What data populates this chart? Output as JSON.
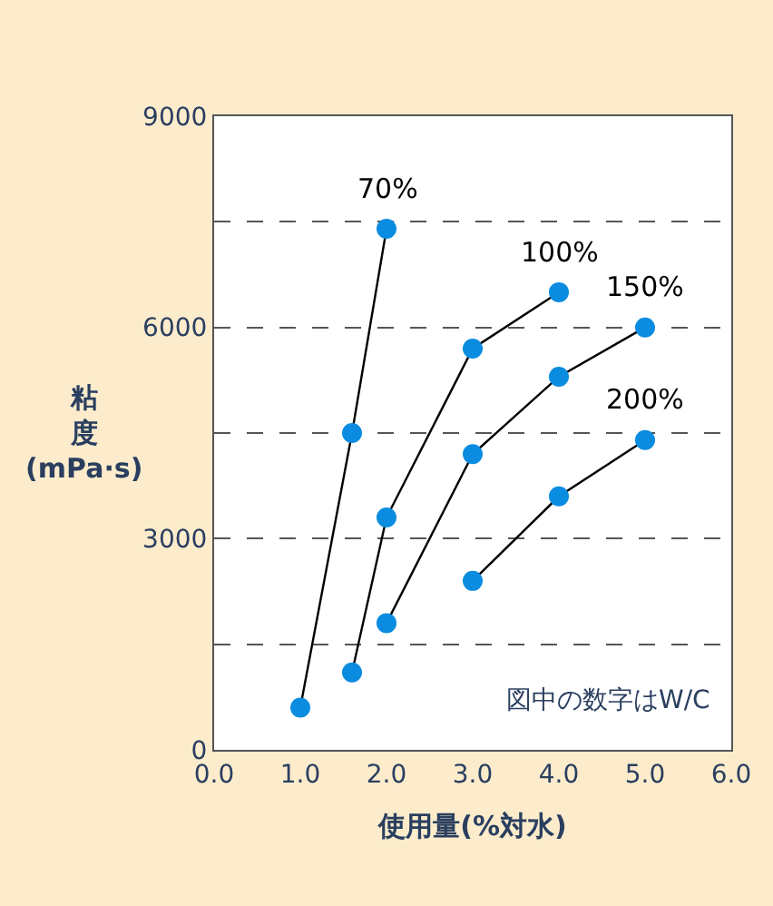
{
  "chart_data": {
    "type": "line",
    "xlabel": "使用量(%対水)",
    "ylabel": "粘度(mPa·s)",
    "series": [
      {
        "name": "70%",
        "color": "#0a8ce0",
        "x": [
          1.0,
          1.6,
          2.0
        ],
        "values": [
          600,
          4500,
          7400
        ]
      },
      {
        "name": "100%",
        "color": "#0a8ce0",
        "x": [
          1.6,
          2.0,
          3.0,
          4.0
        ],
        "values": [
          1100,
          3300,
          5700,
          6500
        ]
      },
      {
        "name": "150%",
        "color": "#0a8ce0",
        "x": [
          2.0,
          3.0,
          4.0,
          5.0
        ],
        "values": [
          1800,
          4200,
          5300,
          6000
        ]
      },
      {
        "name": "200%",
        "color": "#0a8ce0",
        "x": [
          3.0,
          4.0,
          5.0
        ],
        "values": [
          2400,
          3600,
          4400
        ]
      }
    ],
    "xlim": [
      0,
      6
    ],
    "xticks": [
      {
        "value": 0,
        "label": "0.0"
      },
      {
        "value": 1,
        "label": "1.0"
      },
      {
        "value": 2,
        "label": "2.0"
      },
      {
        "value": 3,
        "label": "3.0"
      },
      {
        "value": 4,
        "label": "4.0"
      },
      {
        "value": 5,
        "label": "5.0"
      },
      {
        "value": 6,
        "label": "6.0"
      }
    ],
    "ylim": [
      0,
      9000
    ],
    "yticks": [
      0,
      {
        "value": 1500,
        "label": null
      },
      3000,
      {
        "value": 4500,
        "label": null
      },
      6000,
      {
        "value": 7500,
        "label": null
      },
      9000
    ],
    "grid": "y",
    "legend": false,
    "marker": "circle",
    "line_style": "solid",
    "annotations": [
      "図中の数字はW/C"
    ]
  }
}
